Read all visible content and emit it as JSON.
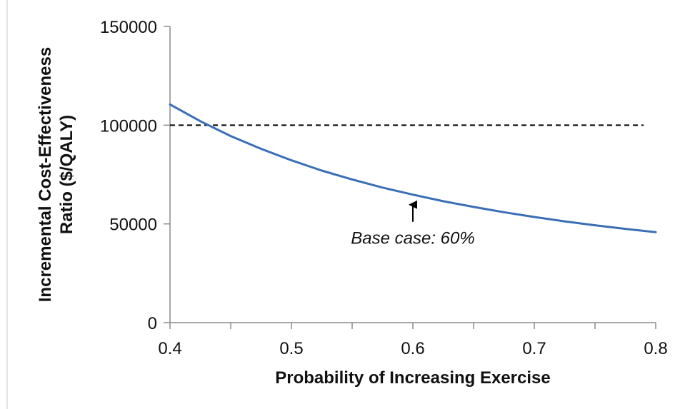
{
  "chart_data": {
    "type": "line",
    "title": "",
    "xlabel": "Probability of Increasing Exercise",
    "ylabel": "Incremental Cost-Effectiveness Ratio ($/QALY)",
    "ylabel_lines": [
      "Incremental Cost-Effectiveness",
      "Ratio ($/QALY)"
    ],
    "xlim": [
      0.4,
      0.8
    ],
    "ylim": [
      0,
      150000
    ],
    "x_ticks": [
      0.4,
      0.5,
      0.6,
      0.7,
      0.8
    ],
    "x_tick_labels": [
      "0.4",
      "0.5",
      "0.6",
      "0.7",
      "0.8"
    ],
    "y_ticks": [
      0,
      50000,
      100000,
      150000
    ],
    "y_tick_labels": [
      "0",
      "50000",
      "100000",
      "150000"
    ],
    "grid": false,
    "legend": "none",
    "series": [
      {
        "color": "#3a6fb5",
        "x": [
          0.4,
          0.425,
          0.45,
          0.475,
          0.5,
          0.525,
          0.55,
          0.575,
          0.6,
          0.625,
          0.65,
          0.675,
          0.7,
          0.725,
          0.75,
          0.775,
          0.8
        ],
        "y": [
          110500,
          102000,
          94500,
          88000,
          82200,
          77000,
          72500,
          68400,
          64800,
          61500,
          58600,
          55900,
          53500,
          51300,
          49300,
          47500,
          45800
        ]
      }
    ],
    "reference_line": {
      "style": "dashed",
      "color": "#000000",
      "y": 100000,
      "x_start": 0.4,
      "x_end": 0.79
    },
    "annotation": {
      "text": "Base case: 60%",
      "x": 0.6,
      "arrow_target_y": 64800
    }
  }
}
